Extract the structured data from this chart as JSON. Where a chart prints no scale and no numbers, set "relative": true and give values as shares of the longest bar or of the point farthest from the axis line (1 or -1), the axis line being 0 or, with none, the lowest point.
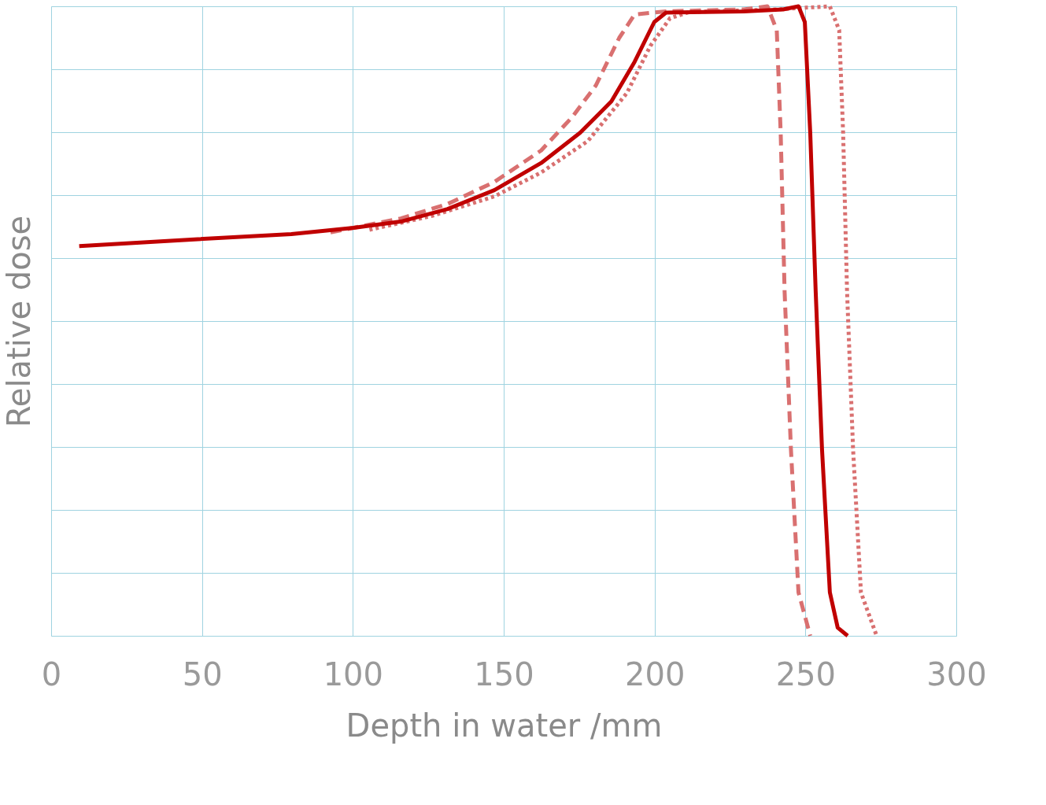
{
  "chart_data": {
    "type": "line",
    "xlabel": "Depth in water /mm",
    "ylabel": "Relative dose",
    "relative": true,
    "xlim": [
      0,
      300
    ],
    "xticks": [
      0,
      50,
      100,
      150,
      200,
      250,
      300
    ],
    "grid": true,
    "series": [
      {
        "color": "#d97070",
        "line_style": "dashed",
        "x": [
          92.6,
          115.9,
          131.4,
          146.9,
          162.4,
          172.7,
          180.5,
          188.3,
          193.4,
          203.8,
          229.6,
          237.4,
          240.5,
          241.8,
          243.1,
          245.2,
          247.7,
          251.6
        ],
        "values": [
          0.641,
          0.663,
          0.686,
          0.721,
          0.771,
          0.824,
          0.874,
          0.95,
          0.987,
          0.992,
          0.995,
          1.0,
          0.962,
          0.799,
          0.547,
          0.296,
          0.069,
          0
        ]
      },
      {
        "color": "#d97070",
        "line_style": "dotted",
        "x": [
          105.5,
          126.2,
          146.9,
          162.4,
          177.9,
          190.8,
          198.6,
          205.1,
          211.5,
          240,
          258.1,
          261.2,
          262.5,
          263.8,
          265.8,
          268.4,
          273.6
        ],
        "values": [
          0.645,
          0.667,
          0.698,
          0.736,
          0.786,
          0.862,
          0.937,
          0.981,
          0.991,
          0.995,
          1.0,
          0.962,
          0.799,
          0.547,
          0.296,
          0.069,
          0
        ]
      },
      {
        "color": "#c00000",
        "line_style": "solid",
        "x": [
          9.3,
          48.6,
          79.6,
          100.3,
          115.9,
          131.4,
          146.9,
          162.4,
          175.3,
          185.7,
          193.4,
          199.9,
          203.8,
          229.6,
          242.6,
          247.7,
          249.8,
          251.6,
          253.4,
          255.5,
          258.1,
          260.7,
          264
        ],
        "values": [
          0.619,
          0.63,
          0.638,
          0.648,
          0.658,
          0.678,
          0.708,
          0.751,
          0.799,
          0.849,
          0.912,
          0.975,
          0.99,
          0.992,
          0.995,
          1.0,
          0.975,
          0.799,
          0.547,
          0.296,
          0.069,
          0.013,
          0
        ]
      }
    ]
  }
}
